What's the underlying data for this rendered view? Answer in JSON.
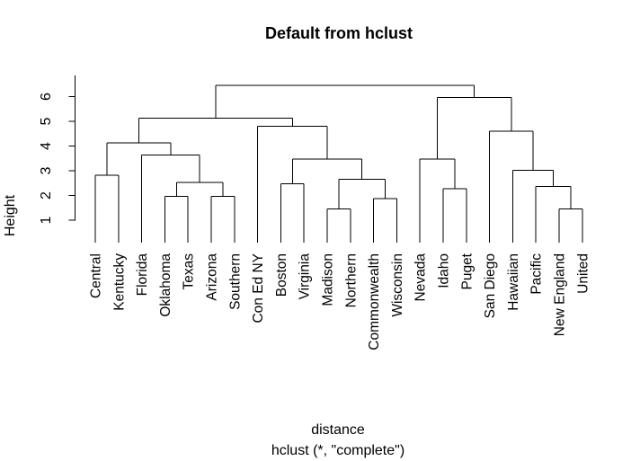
{
  "figure": {
    "background_color": "#ffffff",
    "line_color": "#000000",
    "text_color": "#000000"
  },
  "chart_data": {
    "type": "dendrogram",
    "title": "Default from hclust",
    "ylabel": "Height",
    "xlabel": "distance",
    "subcaption": "hclust (*, \"complete\")",
    "y_axis": {
      "ticks": [
        1,
        2,
        3,
        4,
        5,
        6
      ],
      "range": [
        1,
        6.9
      ],
      "grid": false
    },
    "leaves": [
      "Central",
      "Kentucky",
      "Florida",
      "Oklahoma",
      "Texas",
      "Arizona",
      "Southern",
      "Con Ed NY",
      "Boston",
      "Virginia",
      "Madison",
      "Northern",
      "Commonwealth",
      "Wisconsin",
      "Nevada",
      "Idaho",
      "Puget",
      "San Diego",
      "Hawaiian",
      "Pacific",
      "New England",
      "United"
    ],
    "tree": {
      "h": 6.45,
      "l": {
        "h": 5.12,
        "l": {
          "h": 4.13,
          "l": {
            "h": 2.82,
            "l": "Central",
            "r": "Kentucky"
          },
          "r": {
            "h": 3.64,
            "l": "Florida",
            "r": {
              "h": 2.52,
              "l": {
                "h": 1.97,
                "l": "Oklahoma",
                "r": "Texas"
              },
              "r": {
                "h": 1.97,
                "l": "Arizona",
                "r": "Southern"
              }
            }
          }
        },
        "r": {
          "h": 4.8,
          "l": "Con Ed NY",
          "r": {
            "h": 3.48,
            "l": {
              "h": 2.48,
              "l": "Boston",
              "r": "Virginia"
            },
            "r": {
              "h": 2.65,
              "l": {
                "h": 1.46,
                "l": "Madison",
                "r": "Northern"
              },
              "r": {
                "h": 1.87,
                "l": "Commonwealth",
                "r": "Wisconsin"
              }
            }
          }
        }
      },
      "r": {
        "h": 5.97,
        "l": {
          "h": 3.48,
          "l": "Nevada",
          "r": {
            "h": 2.27,
            "l": "Idaho",
            "r": "Puget"
          }
        },
        "r": {
          "h": 4.6,
          "l": "San Diego",
          "r": {
            "h": 3.02,
            "l": "Hawaiian",
            "r": {
              "h": 2.37,
              "l": "Pacific",
              "r": {
                "h": 1.46,
                "l": "New England",
                "r": "United"
              }
            }
          }
        }
      }
    }
  }
}
